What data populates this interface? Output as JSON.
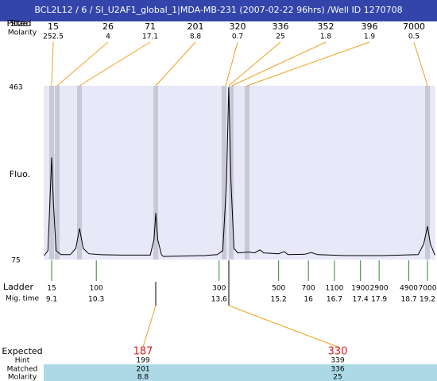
{
  "header": {
    "title": "BCL2L12 / 6 / SI_U2AF1_global_1|MDA-MB-231 (2007-02-22 96hrs) /Well ID 1270708"
  },
  "peak_table": {
    "size_labels": [
      "Fitted",
      "Size"
    ],
    "molarity_label": "Molarity",
    "sizes": [
      15,
      26,
      71,
      201,
      320,
      336,
      352,
      396,
      7000
    ],
    "molarities": [
      252.5,
      4,
      17.1,
      8.8,
      0.7,
      25,
      1.8,
      1.9,
      0.5
    ]
  },
  "y_axis": {
    "label": "Fluo.",
    "max": 463,
    "min": 75
  },
  "trace": {
    "time": [
      8.9,
      9.0,
      9.05,
      9.1,
      9.15,
      9.22,
      9.35,
      9.6,
      9.75,
      9.85,
      9.95,
      10.1,
      10.4,
      11.0,
      11.75,
      11.85,
      11.9,
      11.95,
      12.05,
      12.1,
      13.2,
      13.55,
      13.7,
      13.8,
      13.86,
      13.92,
      14.0,
      14.1,
      14.4,
      14.55,
      14.7,
      14.8,
      15.2,
      15.35,
      15.45,
      15.9,
      16.08,
      16.25,
      17.0,
      18.0,
      18.95,
      19.1,
      19.2,
      19.28,
      19.4
    ],
    "fluo": [
      84,
      95,
      200,
      305,
      200,
      95,
      86,
      86,
      100,
      145,
      100,
      88,
      86,
      85,
      85,
      120,
      180,
      120,
      86,
      82,
      84,
      86,
      95,
      250,
      463,
      250,
      100,
      90,
      92,
      90,
      97,
      90,
      88,
      93,
      86,
      87,
      91,
      86,
      84,
      84,
      86,
      110,
      150,
      110,
      85
    ]
  },
  "ladder": {
    "label": "Ladder",
    "time_label": "Mig. time",
    "sizes": [
      15,
      100,
      300,
      500,
      700,
      1100,
      1900,
      2900,
      4900,
      7000
    ],
    "times": [
      9.1,
      10.3,
      13.6,
      15.2,
      16,
      16.7,
      17.4,
      17.9,
      18.7,
      19.2
    ]
  },
  "expected": {
    "label": "Expected",
    "values": [
      187,
      330
    ]
  },
  "hint": {
    "label": "Hint",
    "values": [
      199,
      339
    ]
  },
  "matched": {
    "label": "Matched",
    "values": [
      201,
      336
    ]
  },
  "molarity": {
    "label": "Molarity",
    "values": [
      8.8,
      25
    ]
  }
}
